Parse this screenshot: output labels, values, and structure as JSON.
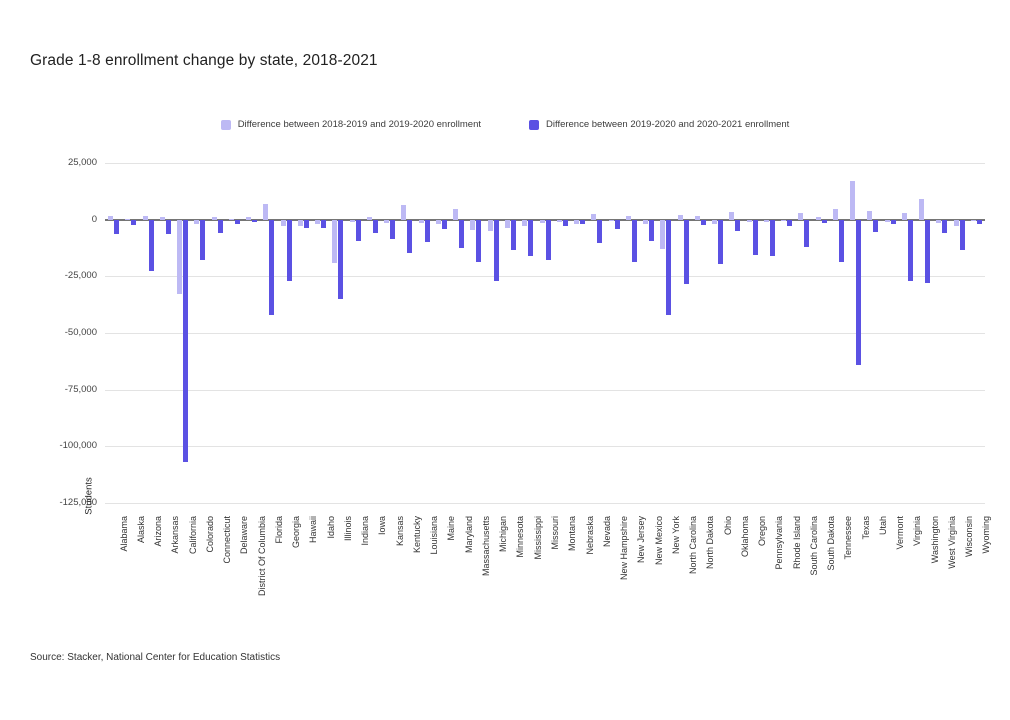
{
  "title": "Grade 1-8 enrollment change by state, 2018-2021",
  "source": "Source: Stacker, National Center for Education Statistics",
  "chart_data": {
    "type": "bar",
    "title": "Grade 1-8 enrollment change by state, 2018-2021",
    "xlabel": "",
    "ylabel": "Students",
    "ylim": [
      -125000,
      25000
    ],
    "ytick_step": 25000,
    "ytick_labels": [
      "25,000",
      "0",
      "-25,000",
      "-50,000",
      "-75,000",
      "-100,000",
      "-125,000"
    ],
    "grid": true,
    "legend_position": "top",
    "background_color": "#ffffff",
    "gridline_color": "#e3e3e3",
    "zero_line_color": "#757575",
    "categories": [
      "Alabama",
      "Alaska",
      "Arizona",
      "Arkansas",
      "California",
      "Colorado",
      "Connecticut",
      "Delaware",
      "District Of Columbia",
      "Florida",
      "Georgia",
      "Hawaii",
      "Idaho",
      "Illinois",
      "Indiana",
      "Iowa",
      "Kansas",
      "Kentucky",
      "Louisiana",
      "Maine",
      "Maryland",
      "Massachusetts",
      "Michigan",
      "Minnesota",
      "Mississippi",
      "Missouri",
      "Montana",
      "Nebraska",
      "Nevada",
      "New Hampshire",
      "New Jersey",
      "New Mexico",
      "New York",
      "North Carolina",
      "North Dakota",
      "Ohio",
      "Oklahoma",
      "Oregon",
      "Pennsylvania",
      "Rhode Island",
      "South Carolina",
      "South Dakota",
      "Tennessee",
      "Texas",
      "Utah",
      "Vermont",
      "Virginia",
      "Washington",
      "West Virginia",
      "Wisconsin",
      "Wyoming"
    ],
    "series": [
      {
        "name": "Difference between 2018-2019 and 2019-2020 enrollment",
        "color": "#bdb9f4",
        "values": [
          1500,
          500,
          1800,
          1200,
          -33000,
          -2000,
          1000,
          500,
          1000,
          7000,
          -3000,
          -2800,
          -2000,
          -19000,
          -1000,
          1000,
          -1500,
          6600,
          -1500,
          -2000,
          4700,
          -4500,
          -5000,
          -3500,
          -3000,
          -1500,
          -1000,
          -2000,
          2500,
          -500,
          1500,
          -1800,
          -13000,
          2000,
          1500,
          -2000,
          3500,
          -1000,
          -1000,
          -500,
          3000,
          1000,
          4500,
          17000,
          4000,
          -1000,
          3000,
          9300,
          -1500,
          -3000,
          -500
        ]
      },
      {
        "name": "Difference between 2019-2020 and 2020-2021 enrollment",
        "color": "#5b51e3",
        "values": [
          -6300,
          -2500,
          -22500,
          -6500,
          -107000,
          -18000,
          -6000,
          -1900,
          -1200,
          -42000,
          -27000,
          -3500,
          -3500,
          -35000,
          -9500,
          -6000,
          -8500,
          -14500,
          -10000,
          -4000,
          -12500,
          -18800,
          -27000,
          -13500,
          -16000,
          -18000,
          -3000,
          -2000,
          -10500,
          -4000,
          -18500,
          -9600,
          -42000,
          -28500,
          -2500,
          -19500,
          -4800,
          -15500,
          -16000,
          -3000,
          -12000,
          -1500,
          -18500,
          -64000,
          -5500,
          -1800,
          -27000,
          -28000,
          -6000,
          -13500,
          -2000
        ]
      }
    ]
  }
}
